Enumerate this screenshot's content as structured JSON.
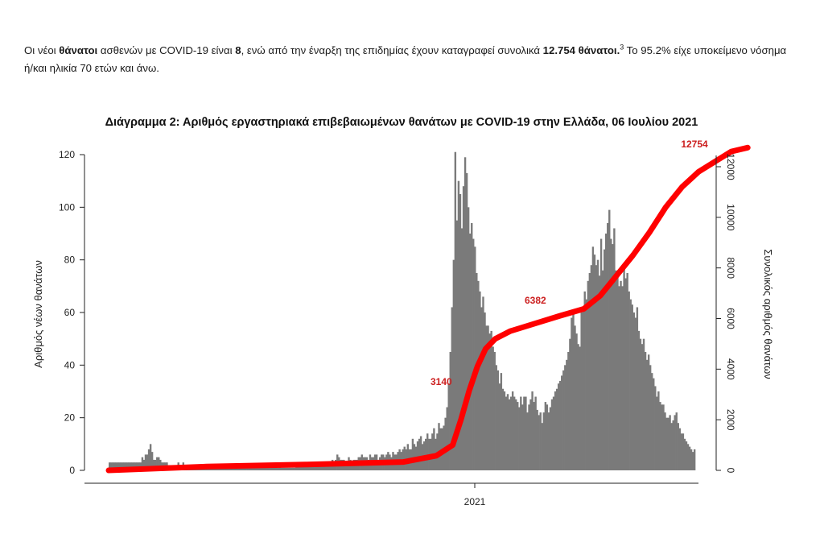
{
  "paragraph": {
    "t1": "Οι νέοι ",
    "b1": "θάνατοι",
    "t2": " ασθενών με COVID-19 είναι ",
    "b2": "8",
    "t3": ", ενώ από την έναρξη της επιδημίας έχουν καταγραφεί συνολικά ",
    "b3": "12.754 θάνατοι.",
    "sup": "3",
    "t4": "  Το 95.2% είχε υποκείμενο νόσημα ή/και ηλικία 70 ετών και άνω."
  },
  "chart_data": {
    "type": "bar",
    "title": "Διάγραμμα 2: Αριθμός εργαστηριακά επιβεβαιωμένων θανάτων με COVID-19 στην Ελλάδα, 06 Ιουλίου 2021",
    "xlabel": "",
    "ylabel": "Αριθμός νέων θανάτων",
    "y2label": "Συνολικός αριθμός θανάτων",
    "ylim": [
      0,
      125
    ],
    "y2lim": [
      0,
      12900
    ],
    "yticks": [
      "0",
      "20",
      "40",
      "60",
      "80",
      "100",
      "120"
    ],
    "y2ticks": [
      "0",
      "2000",
      "4000",
      "6000",
      "8000",
      "10000",
      "12000"
    ],
    "xticks": [
      "2021"
    ],
    "grid": false,
    "colors": {
      "bars": "#7a7a7a",
      "cumulative": "#ff0000",
      "annotation": "#cc1f1f"
    },
    "series": [
      {
        "type": "bar",
        "values": [
          3,
          3,
          3,
          3,
          3,
          3,
          3,
          3,
          3,
          3,
          3,
          3,
          3,
          3,
          3,
          3,
          3,
          3,
          3,
          3,
          5,
          4,
          6,
          6,
          8,
          10,
          7,
          4,
          4,
          5,
          5,
          4,
          3,
          3,
          3,
          3,
          2,
          2,
          2,
          2,
          2,
          2,
          3,
          2,
          2,
          3,
          2,
          2,
          2,
          2,
          2,
          2,
          2,
          2,
          2,
          2,
          2,
          2,
          1,
          1,
          1,
          1,
          1,
          1,
          1,
          1,
          1,
          1,
          1,
          2,
          1,
          1,
          1,
          1,
          1,
          1,
          1,
          1,
          1,
          1,
          1,
          2,
          1,
          1,
          1,
          1,
          1,
          1,
          1,
          1,
          1,
          2,
          1,
          1,
          1,
          1,
          1,
          1,
          1,
          1,
          1,
          1,
          1,
          1,
          2,
          1,
          1,
          1,
          1,
          1,
          1,
          1,
          1,
          1,
          2,
          2,
          2,
          3,
          2,
          2,
          2,
          3,
          3,
          3,
          2,
          2,
          3,
          3,
          3,
          3,
          3,
          3,
          3,
          3,
          3,
          3,
          4,
          3,
          4,
          6,
          5,
          4,
          4,
          4,
          3,
          3,
          5,
          4,
          3,
          4,
          4,
          4,
          5,
          5,
          6,
          5,
          5,
          5,
          4,
          6,
          5,
          5,
          6,
          6,
          4,
          5,
          6,
          6,
          5,
          6,
          7,
          6,
          5,
          7,
          6,
          6,
          7,
          8,
          7,
          8,
          9,
          8,
          10,
          8,
          8,
          12,
          10,
          9,
          11,
          12,
          13,
          10,
          11,
          12,
          14,
          12,
          12,
          14,
          16,
          12,
          14,
          18,
          16,
          16,
          17,
          20,
          24,
          33,
          45,
          62,
          80,
          121,
          95,
          110,
          105,
          92,
          108,
          119,
          113,
          100,
          90,
          94,
          88,
          85,
          75,
          72,
          68,
          62,
          66,
          60,
          55,
          55,
          52,
          53,
          47,
          45,
          40,
          38,
          33,
          37,
          31,
          30,
          28,
          29,
          27,
          28,
          30,
          28,
          27,
          26,
          24,
          28,
          25,
          28,
          28,
          22,
          25,
          27,
          30,
          26,
          28,
          23,
          21,
          22,
          18,
          22,
          26,
          25,
          22,
          24,
          27,
          28,
          30,
          31,
          33,
          34,
          36,
          38,
          40,
          42,
          45,
          50,
          58,
          61,
          55,
          52,
          48,
          47,
          60,
          62,
          68,
          65,
          72,
          75,
          78,
          85,
          82,
          78,
          80,
          74,
          88,
          76,
          84,
          90,
          94,
          99,
          88,
          86,
          92,
          76,
          75,
          70,
          72,
          70,
          78,
          73,
          75,
          68,
          65,
          63,
          60,
          58,
          62,
          53,
          50,
          48,
          50,
          45,
          42,
          44,
          40,
          37,
          35,
          32,
          28,
          30,
          26,
          25,
          25,
          22,
          20,
          20,
          21,
          18,
          19,
          21,
          22,
          18,
          16,
          14,
          14,
          12,
          11,
          10,
          9,
          8,
          7,
          8
        ]
      },
      {
        "type": "line",
        "name": "",
        "x": [
          0,
          60,
          120,
          180,
          200,
          210,
          215,
          220,
          225,
          230,
          236,
          245,
          260,
          275,
          290,
          300,
          310,
          320,
          330,
          340,
          350,
          360,
          370,
          380,
          390
        ],
        "values": [
          0,
          150,
          230,
          330,
          580,
          1000,
          2000,
          3140,
          4100,
          4800,
          5200,
          5500,
          5800,
          6100,
          6382,
          6900,
          7700,
          8500,
          9400,
          10400,
          11200,
          11800,
          12200,
          12600,
          12754
        ]
      }
    ],
    "annotations": [
      "12754",
      "6382",
      "3140"
    ]
  }
}
